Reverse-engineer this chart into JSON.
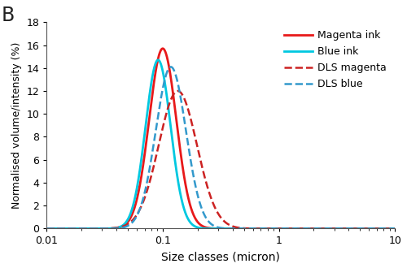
{
  "title": "",
  "panel_label": "B",
  "xlabel": "Size classes (micron)",
  "ylabel": "Normalised volume/intensity (%)",
  "xlim": [
    0.01,
    10
  ],
  "ylim": [
    0,
    18
  ],
  "yticks": [
    0,
    2,
    4,
    6,
    8,
    10,
    12,
    14,
    16,
    18
  ],
  "curves": [
    {
      "label": "Magenta ink",
      "color": "#e8191a",
      "linestyle": "solid",
      "linewidth": 2.0,
      "mu_log10": -1.0,
      "sigma_log10": 0.117,
      "peak": 15.7
    },
    {
      "label": "Blue ink",
      "color": "#00c8e0",
      "linestyle": "solid",
      "linewidth": 2.0,
      "mu_log10": -1.04,
      "sigma_log10": 0.108,
      "peak": 14.7
    },
    {
      "label": "DLS magenta",
      "color": "#cc2222",
      "linestyle": "dashed",
      "linewidth": 1.8,
      "mu_log10": -0.87,
      "sigma_log10": 0.165,
      "peak": 12.0
    },
    {
      "label": "DLS blue",
      "color": "#3399cc",
      "linestyle": "dashed",
      "linewidth": 1.8,
      "mu_log10": -0.93,
      "sigma_log10": 0.13,
      "peak": 14.1
    }
  ],
  "legend_loc": "upper right",
  "background_color": "#ffffff",
  "axes_color": "#555555",
  "font_size": 9,
  "label_font_size": 10,
  "panel_font_size": 17
}
